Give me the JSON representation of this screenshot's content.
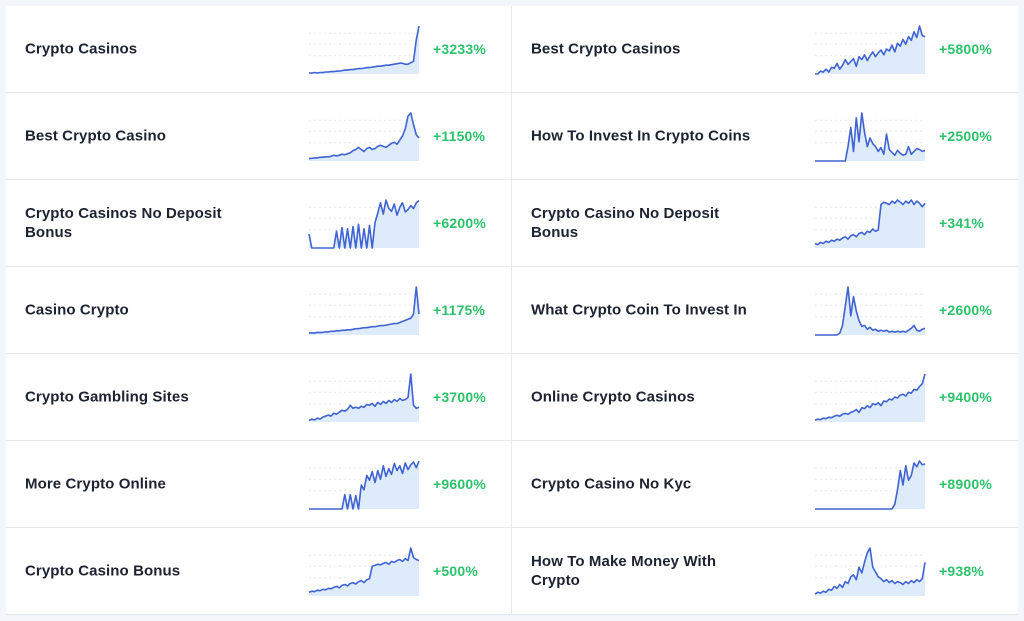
{
  "colors": {
    "line": "#3f63d1",
    "fill": "#d8e7fa",
    "growth": "#2bc26b",
    "gridline": "#e3e7ee"
  },
  "left": [
    {
      "keyword": "Crypto Casinos",
      "growth": "+3233%",
      "trend": [
        2,
        2,
        3,
        2,
        3,
        3,
        4,
        4,
        5,
        5,
        6,
        6,
        7,
        8,
        8,
        9,
        9,
        10,
        11,
        11,
        12,
        13,
        13,
        14,
        15,
        16,
        16,
        17,
        18,
        18,
        19,
        20,
        21,
        22,
        22,
        20,
        20,
        23,
        26,
        70,
        98
      ]
    },
    {
      "keyword": "Best Crypto Casino",
      "growth": "+1150%",
      "trend": [
        5,
        5,
        6,
        6,
        7,
        7,
        8,
        8,
        9,
        11,
        10,
        11,
        13,
        12,
        14,
        16,
        20,
        22,
        26,
        22,
        18,
        24,
        26,
        22,
        24,
        28,
        30,
        28,
        26,
        30,
        34,
        36,
        32,
        40,
        48,
        62,
        86,
        92,
        70,
        50,
        44
      ]
    },
    {
      "keyword": "Crypto Casinos No Deposit Bonus",
      "growth": "+6200%",
      "trend": [
        25,
        0,
        0,
        0,
        0,
        0,
        0,
        0,
        0,
        0,
        30,
        0,
        36,
        0,
        34,
        0,
        38,
        0,
        42,
        0,
        34,
        0,
        40,
        0,
        45,
        62,
        80,
        60,
        85,
        70,
        65,
        78,
        58,
        72,
        80,
        64,
        68,
        75,
        70,
        80,
        84
      ]
    },
    {
      "keyword": "Casino Crypto",
      "growth": "+1175%",
      "trend": [
        4,
        4,
        4,
        5,
        5,
        5,
        6,
        6,
        7,
        7,
        8,
        8,
        9,
        9,
        10,
        10,
        11,
        12,
        12,
        13,
        14,
        14,
        15,
        16,
        16,
        17,
        18,
        18,
        19,
        20,
        21,
        22,
        22,
        24,
        26,
        28,
        30,
        32,
        40,
        92,
        40
      ]
    },
    {
      "keyword": "Crypto Gambling Sites",
      "growth": "+3700%",
      "trend": [
        3,
        6,
        4,
        8,
        6,
        10,
        12,
        14,
        12,
        18,
        16,
        20,
        24,
        22,
        26,
        34,
        28,
        30,
        28,
        32,
        30,
        36,
        34,
        38,
        32,
        40,
        36,
        42,
        38,
        44,
        40,
        46,
        42,
        48,
        44,
        46,
        50,
        98,
        34,
        28,
        30
      ]
    },
    {
      "keyword": "More Crypto Online",
      "growth": "+9600%",
      "trend": [
        0,
        0,
        0,
        0,
        0,
        0,
        0,
        0,
        0,
        0,
        0,
        0,
        0,
        30,
        0,
        30,
        0,
        28,
        0,
        50,
        40,
        70,
        60,
        78,
        55,
        80,
        62,
        90,
        68,
        84,
        72,
        95,
        80,
        90,
        74,
        96,
        82,
        92,
        98,
        86,
        100
      ]
    },
    {
      "keyword": "Crypto Casino Bonus",
      "growth": "+500%",
      "trend": [
        8,
        10,
        9,
        12,
        11,
        14,
        13,
        16,
        15,
        18,
        20,
        17,
        22,
        24,
        21,
        26,
        28,
        25,
        30,
        32,
        28,
        34,
        36,
        62,
        64,
        66,
        65,
        68,
        70,
        66,
        72,
        70,
        74,
        76,
        72,
        78,
        74,
        100,
        80,
        76,
        74
      ]
    }
  ],
  "right": [
    {
      "keyword": "Best Crypto Casinos",
      "growth": "+5800%",
      "trend": [
        0,
        0,
        6,
        4,
        10,
        4,
        14,
        12,
        22,
        10,
        18,
        30,
        20,
        26,
        32,
        16,
        36,
        30,
        40,
        28,
        38,
        46,
        36,
        44,
        50,
        40,
        52,
        48,
        60,
        46,
        64,
        58,
        72,
        62,
        78,
        70,
        88,
        76,
        100,
        80,
        78
      ]
    },
    {
      "keyword": "How To Invest In Crypto Coins",
      "growth": "+2500%",
      "trend": [
        0,
        0,
        0,
        0,
        0,
        0,
        0,
        0,
        0,
        0,
        0,
        0,
        30,
        70,
        20,
        90,
        40,
        100,
        60,
        30,
        48,
        36,
        30,
        20,
        28,
        14,
        56,
        24,
        18,
        12,
        22,
        16,
        12,
        14,
        30,
        14,
        20,
        26,
        24,
        20,
        22
      ]
    },
    {
      "keyword": "Crypto Casino No Deposit Bonus",
      "growth": "+341%",
      "trend": [
        8,
        6,
        10,
        8,
        12,
        10,
        14,
        12,
        16,
        14,
        18,
        20,
        16,
        22,
        24,
        20,
        26,
        28,
        24,
        30,
        28,
        34,
        30,
        32,
        78,
        82,
        80,
        78,
        84,
        80,
        86,
        82,
        78,
        84,
        80,
        86,
        78,
        84,
        80,
        74,
        80
      ]
    },
    {
      "keyword": "What Crypto Coin To Invest In",
      "growth": "+2600%",
      "trend": [
        0,
        0,
        0,
        0,
        0,
        0,
        0,
        0,
        0,
        4,
        20,
        60,
        100,
        40,
        80,
        50,
        30,
        18,
        20,
        12,
        16,
        10,
        12,
        8,
        10,
        8,
        10,
        6,
        8,
        6,
        8,
        6,
        8,
        6,
        10,
        14,
        20,
        10,
        8,
        12,
        14
      ]
    },
    {
      "keyword": "Online Crypto Casinos",
      "growth": "+9400%",
      "trend": [
        4,
        6,
        5,
        8,
        7,
        10,
        9,
        12,
        14,
        12,
        16,
        18,
        16,
        20,
        22,
        26,
        20,
        30,
        28,
        34,
        30,
        38,
        36,
        40,
        34,
        44,
        42,
        48,
        46,
        52,
        50,
        56,
        58,
        54,
        62,
        60,
        68,
        66,
        74,
        80,
        100
      ]
    },
    {
      "keyword": "Crypto Casino No Kyc",
      "growth": "+8900%",
      "trend": [
        0,
        0,
        0,
        0,
        0,
        0,
        0,
        0,
        0,
        0,
        0,
        0,
        0,
        0,
        0,
        0,
        0,
        0,
        0,
        0,
        0,
        0,
        0,
        0,
        0,
        0,
        0,
        0,
        0,
        10,
        40,
        80,
        50,
        90,
        60,
        70,
        96,
        88,
        100,
        92,
        94
      ]
    },
    {
      "keyword": "How To Make Money With Crypto",
      "growth": "+938%",
      "trend": [
        4,
        8,
        6,
        10,
        8,
        14,
        12,
        20,
        16,
        24,
        18,
        30,
        26,
        40,
        44,
        34,
        60,
        48,
        70,
        90,
        100,
        60,
        50,
        40,
        36,
        30,
        34,
        28,
        32,
        26,
        30,
        28,
        24,
        30,
        26,
        32,
        28,
        34,
        30,
        36,
        70
      ]
    }
  ]
}
